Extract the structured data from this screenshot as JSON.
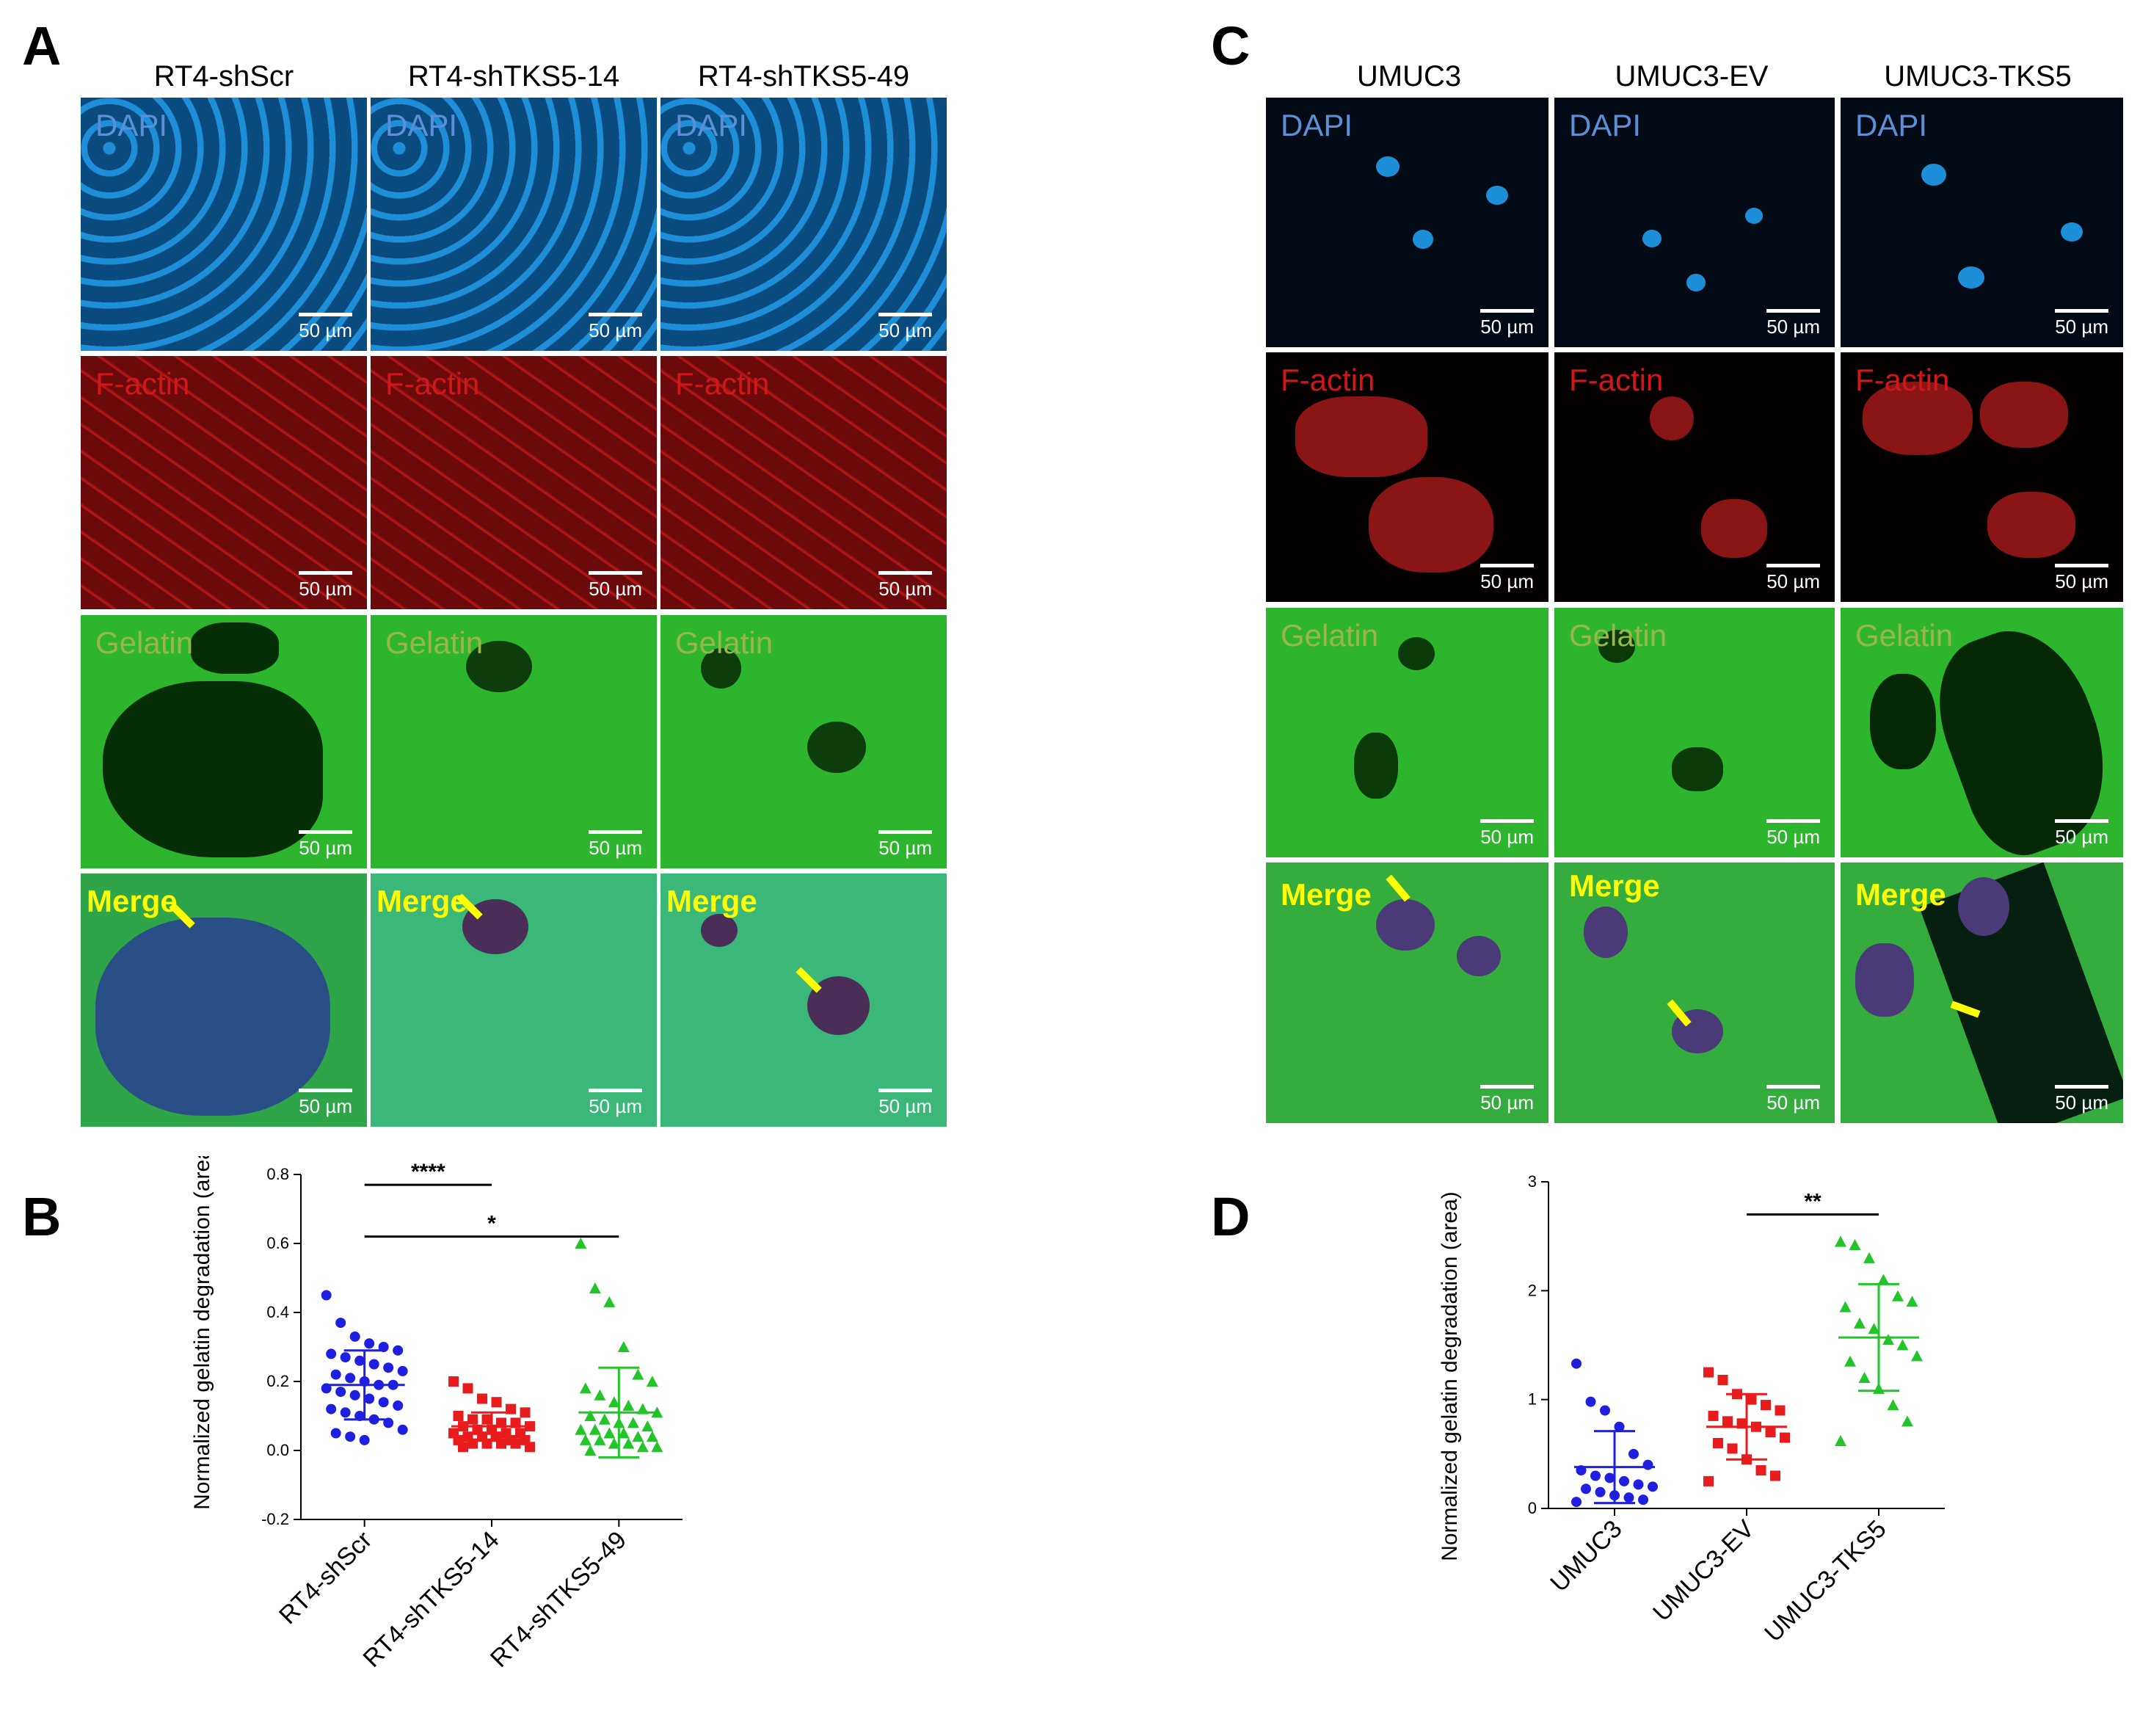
{
  "panels": {
    "a": {
      "letter": "A",
      "columns": [
        "RT4-shScr",
        "RT4-shTKS5-14",
        "RT4-shTKS5-49"
      ]
    },
    "b": {
      "letter": "B"
    },
    "c": {
      "letter": "C",
      "columns": [
        "UMUC3",
        "UMUC3-EV",
        "UMUC3-TKS5"
      ]
    },
    "d": {
      "letter": "D"
    }
  },
  "channels": {
    "dapi": "DAPI",
    "factin": "F-actin",
    "gelatin": "Gelatin",
    "merge": "Merge"
  },
  "scale_bar": "50 µm",
  "colors": {
    "blue": "#1f1fe0",
    "red": "#e81c1c",
    "green": "#22c42a",
    "label_dapi": "#5c8fd6",
    "label_factin": "#d11717",
    "label_gelatin": "#9bb54a",
    "label_merge": "#ffff00"
  },
  "chart_data": [
    {
      "type": "scatter",
      "panel": "B",
      "ylabel": "Normalized gelatin degradation (area)",
      "xlabel": "",
      "ylim": [
        -0.2,
        0.8
      ],
      "yticks": [
        "-0.2",
        "0.0",
        "0.2",
        "0.4",
        "0.6",
        "0.8"
      ],
      "ytick_values": [
        -0.2,
        0.0,
        0.2,
        0.4,
        0.6,
        0.8
      ],
      "categories": [
        "RT4-shScr",
        "RT4-shTKS5-14",
        "RT4-shTKS5-49"
      ],
      "marker": [
        "circle",
        "square",
        "triangle"
      ],
      "series": [
        {
          "name": "RT4-shScr",
          "mean": 0.19,
          "sd": 0.1,
          "values": [
            0.45,
            0.37,
            0.33,
            0.31,
            0.3,
            0.29,
            0.28,
            0.27,
            0.26,
            0.25,
            0.24,
            0.23,
            0.22,
            0.21,
            0.2,
            0.19,
            0.19,
            0.18,
            0.17,
            0.16,
            0.15,
            0.14,
            0.13,
            0.12,
            0.11,
            0.1,
            0.09,
            0.08,
            0.06,
            0.05,
            0.04,
            0.03
          ]
        },
        {
          "name": "RT4-shTKS5-14",
          "mean": 0.07,
          "sd": 0.04,
          "values": [
            0.2,
            0.18,
            0.15,
            0.14,
            0.12,
            0.11,
            0.1,
            0.09,
            0.09,
            0.08,
            0.08,
            0.07,
            0.07,
            0.06,
            0.06,
            0.05,
            0.05,
            0.05,
            0.04,
            0.04,
            0.04,
            0.03,
            0.03,
            0.03,
            0.02,
            0.02,
            0.02,
            0.02,
            0.01,
            0.01
          ]
        },
        {
          "name": "RT4-shTKS5-49",
          "mean": 0.11,
          "sd": 0.13,
          "values": [
            0.6,
            0.47,
            0.43,
            0.3,
            0.22,
            0.2,
            0.18,
            0.16,
            0.14,
            0.13,
            0.12,
            0.11,
            0.1,
            0.09,
            0.08,
            0.08,
            0.07,
            0.06,
            0.06,
            0.05,
            0.05,
            0.04,
            0.04,
            0.03,
            0.03,
            0.02,
            0.02,
            0.01,
            0.01,
            0.0
          ]
        }
      ],
      "significance": [
        {
          "from": 0,
          "to": 1,
          "label": "****",
          "y": 0.77
        },
        {
          "from": 0,
          "to": 2,
          "label": "*",
          "y": 0.62
        }
      ]
    },
    {
      "type": "scatter",
      "panel": "D",
      "ylabel": "Normalized gelatin degradation (area)",
      "xlabel": "",
      "ylim": [
        0,
        3
      ],
      "yticks": [
        "0",
        "1",
        "2",
        "3"
      ],
      "ytick_values": [
        0,
        1,
        2,
        3
      ],
      "categories": [
        "UMUC3",
        "UMUC3-EV",
        "UMUC3-TKS5"
      ],
      "marker": [
        "circle",
        "square",
        "triangle"
      ],
      "series": [
        {
          "name": "UMUC3",
          "mean": 0.38,
          "sd": 0.33,
          "values": [
            1.33,
            0.98,
            0.9,
            0.75,
            0.5,
            0.4,
            0.35,
            0.3,
            0.28,
            0.25,
            0.22,
            0.2,
            0.18,
            0.15,
            0.12,
            0.1,
            0.08,
            0.06
          ]
        },
        {
          "name": "UMUC3-EV",
          "mean": 0.75,
          "sd": 0.3,
          "values": [
            1.25,
            1.18,
            1.05,
            1.0,
            0.95,
            0.9,
            0.85,
            0.8,
            0.78,
            0.75,
            0.7,
            0.65,
            0.6,
            0.55,
            0.45,
            0.35,
            0.3,
            0.25
          ]
        },
        {
          "name": "UMUC3-TKS5",
          "mean": 1.57,
          "sd": 0.49,
          "values": [
            2.45,
            2.42,
            2.3,
            2.1,
            1.95,
            1.9,
            1.85,
            1.7,
            1.65,
            1.55,
            1.5,
            1.4,
            1.35,
            1.2,
            1.1,
            0.95,
            0.8,
            0.62
          ]
        }
      ],
      "significance": [
        {
          "from": 1,
          "to": 2,
          "label": "**",
          "y": 2.7
        }
      ]
    }
  ]
}
